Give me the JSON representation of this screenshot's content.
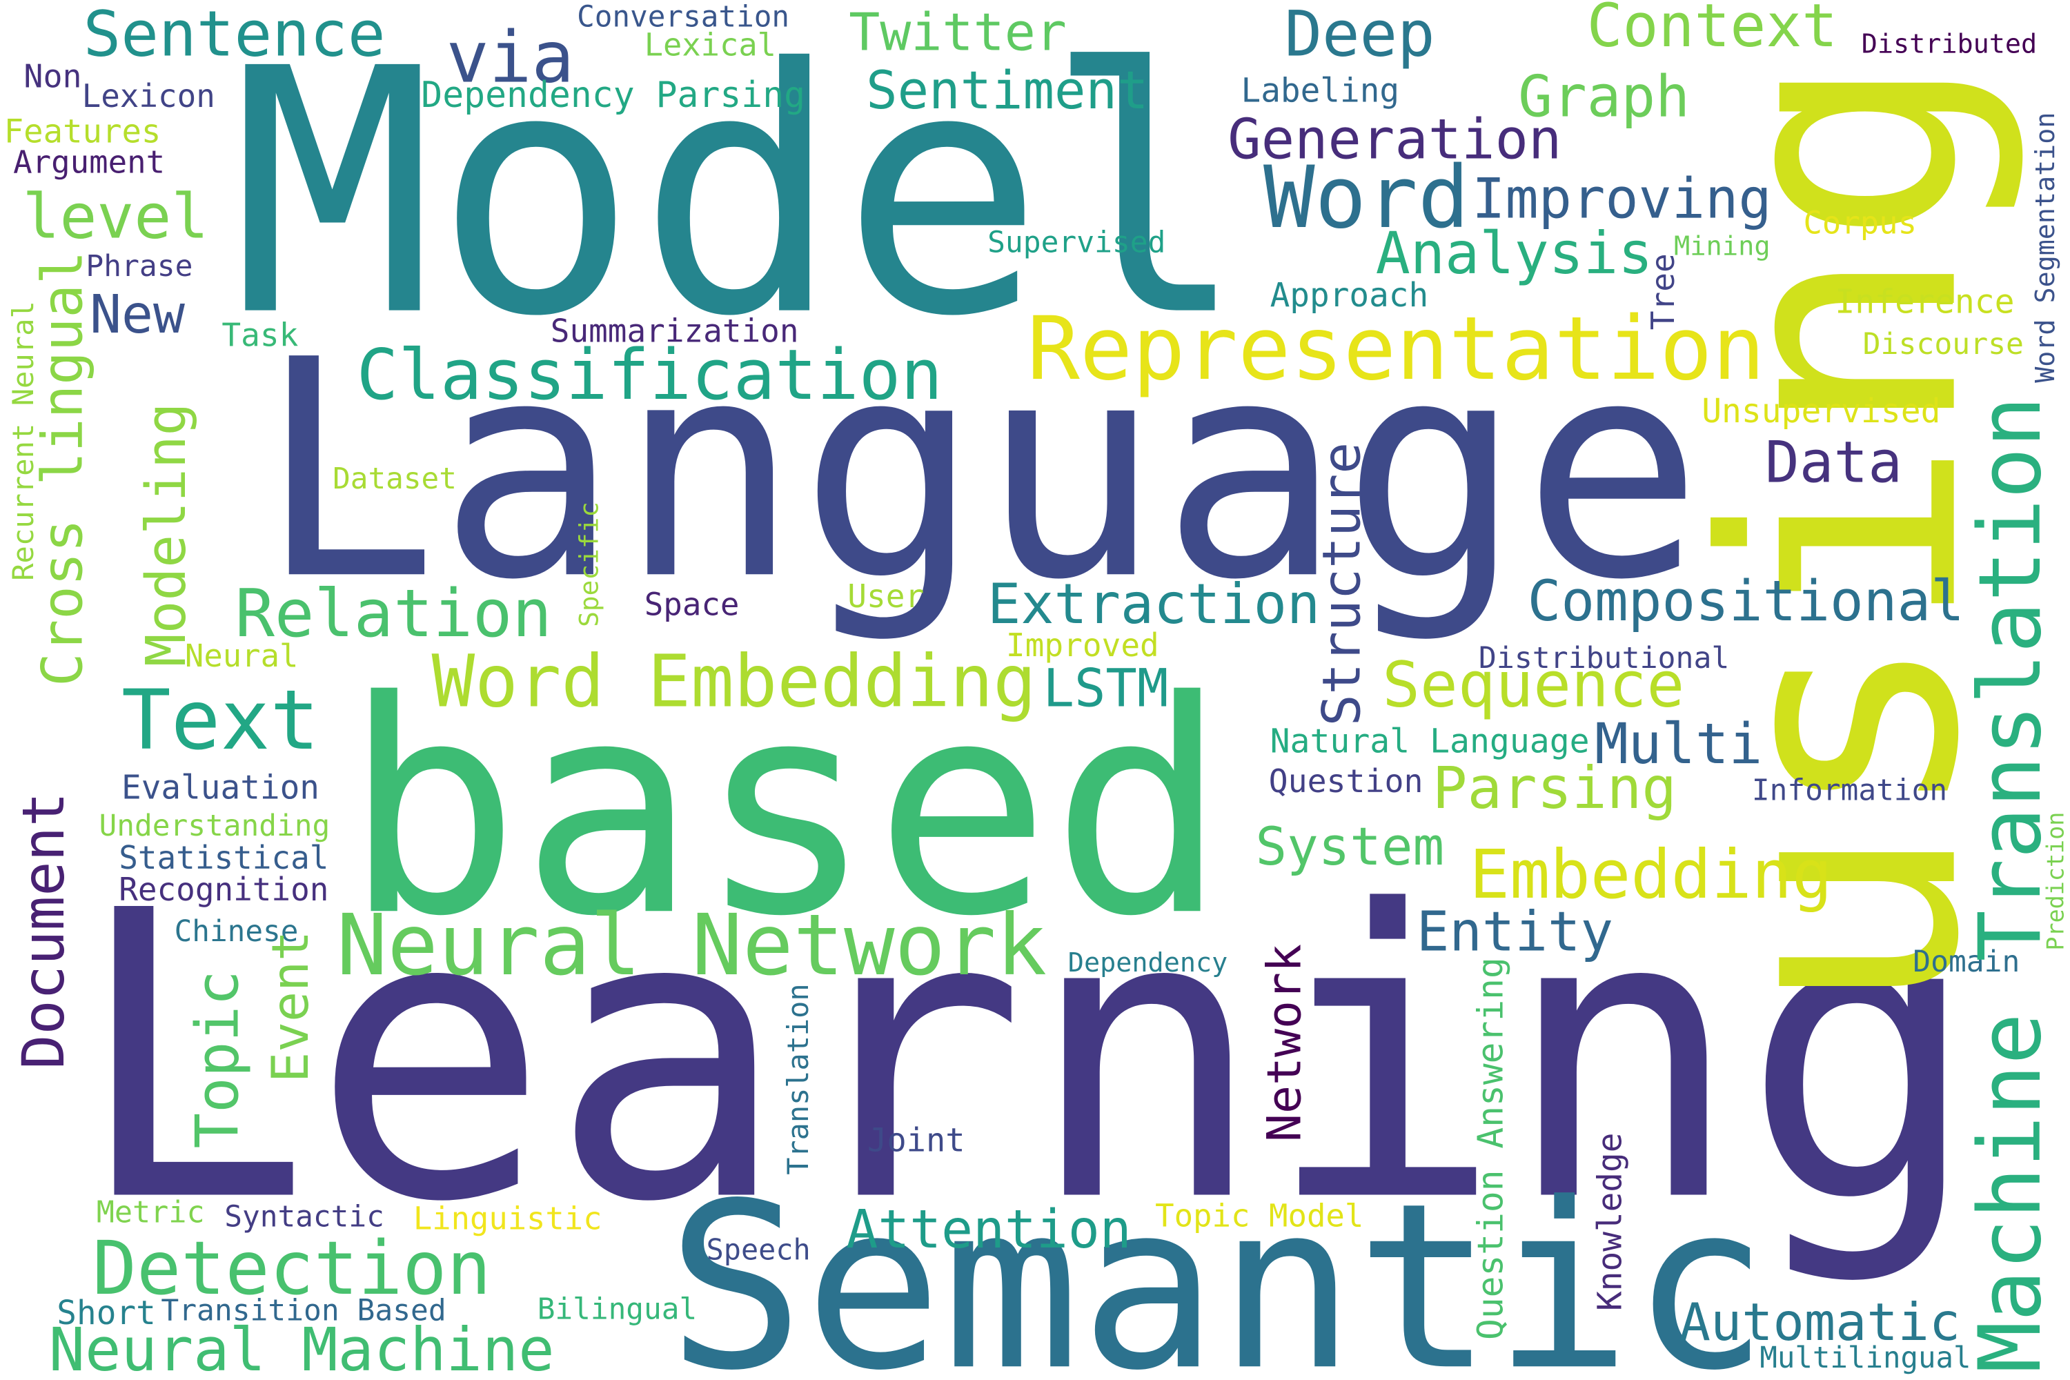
{
  "words": [
    {
      "text": "Model",
      "color": "#25858e"
    },
    {
      "text": "Language",
      "color": "#3e4a89"
    },
    {
      "text": "Learning",
      "color": "#443983"
    },
    {
      "text": "based",
      "color": "#3dbc74"
    },
    {
      "text": "Semantic",
      "color": "#2c728e"
    },
    {
      "text": "using",
      "color": "#d0e11c"
    },
    {
      "text": "Sentence",
      "color": "#21918c"
    },
    {
      "text": "via",
      "color": "#3b528b"
    },
    {
      "text": "Conversation",
      "color": "#39568c"
    },
    {
      "text": "Lexical",
      "color": "#7ad151"
    },
    {
      "text": "Twitter",
      "color": "#5ec962"
    },
    {
      "text": "Deep",
      "color": "#2a788e"
    },
    {
      "text": "Context",
      "color": "#84d44b"
    },
    {
      "text": "Distributed",
      "color": "#440154"
    },
    {
      "text": "Non",
      "color": "#46327e"
    },
    {
      "text": "Lexicon",
      "color": "#414487"
    },
    {
      "text": "Dependency Parsing",
      "color": "#22a884"
    },
    {
      "text": "Sentiment",
      "color": "#1f9e89"
    },
    {
      "text": "Labeling",
      "color": "#31688e"
    },
    {
      "text": "Graph",
      "color": "#6ccd5a"
    },
    {
      "text": "Features",
      "color": "#b5de2b"
    },
    {
      "text": "Argument",
      "color": "#481f70"
    },
    {
      "text": "Generation",
      "color": "#472d7b"
    },
    {
      "text": "Word",
      "color": "#2d708e"
    },
    {
      "text": "Improving",
      "color": "#355f8d"
    },
    {
      "text": "level",
      "color": "#7ad151"
    },
    {
      "text": "Phrase",
      "color": "#433e85"
    },
    {
      "text": "Supervised",
      "color": "#1fa188"
    },
    {
      "text": "Analysis",
      "color": "#29af7f"
    },
    {
      "text": "Mining",
      "color": "#6ece58"
    },
    {
      "text": "Corpus",
      "color": "#e5e419"
    },
    {
      "text": "New",
      "color": "#3b528b"
    },
    {
      "text": "Task",
      "color": "#38b977"
    },
    {
      "text": "Summarization",
      "color": "#482878"
    },
    {
      "text": "Approach",
      "color": "#228c8d"
    },
    {
      "text": "Inference",
      "color": "#c8e020"
    },
    {
      "text": "Discourse",
      "color": "#bddf26"
    },
    {
      "text": "Representation",
      "color": "#e7e419"
    },
    {
      "text": "Classification",
      "color": "#20a486"
    },
    {
      "text": "Unsupervised",
      "color": "#dde318"
    },
    {
      "text": "Data",
      "color": "#46327e"
    },
    {
      "text": "Dataset",
      "color": "#a8db34"
    },
    {
      "text": "Space",
      "color": "#482475"
    },
    {
      "text": "User",
      "color": "#a5db36"
    },
    {
      "text": "Relation",
      "color": "#4ac16d"
    },
    {
      "text": "Extraction",
      "color": "#23898e"
    },
    {
      "text": "Compositional",
      "color": "#2c718e"
    },
    {
      "text": "Neural",
      "color": "#b5de2b"
    },
    {
      "text": "Improved",
      "color": "#c2df23"
    },
    {
      "text": "Distributional",
      "color": "#414487"
    },
    {
      "text": "Word Embedding",
      "color": "#addc30"
    },
    {
      "text": "LSTM",
      "color": "#1f9a8a"
    },
    {
      "text": "Sequence",
      "color": "#b8de29"
    },
    {
      "text": "Text",
      "color": "#22a785"
    },
    {
      "text": "Natural Language",
      "color": "#25ac82"
    },
    {
      "text": "Multi",
      "color": "#33628d"
    },
    {
      "text": "Evaluation",
      "color": "#3b528b"
    },
    {
      "text": "Question",
      "color": "#424086"
    },
    {
      "text": "Parsing",
      "color": "#a0da39"
    },
    {
      "text": "Information",
      "color": "#3f4889"
    },
    {
      "text": "Understanding",
      "color": "#86d549"
    },
    {
      "text": "System",
      "color": "#52c569"
    },
    {
      "text": "Statistical",
      "color": "#365d8d"
    },
    {
      "text": "Recognition",
      "color": "#46307e"
    },
    {
      "text": "Embedding",
      "color": "#d8e219"
    },
    {
      "text": "Chinese",
      "color": "#2b758e"
    },
    {
      "text": "Neural Network",
      "color": "#65cb5e"
    },
    {
      "text": "Entity",
      "color": "#31688e"
    },
    {
      "text": "Dependency",
      "color": "#277f8e"
    },
    {
      "text": "Domain",
      "color": "#2e6f8e"
    },
    {
      "text": "Joint",
      "color": "#3e4a89"
    },
    {
      "text": "Metric",
      "color": "#7fd34e"
    },
    {
      "text": "Syntactic",
      "color": "#433d84"
    },
    {
      "text": "Linguistic",
      "color": "#f1e51d"
    },
    {
      "text": "Topic Model",
      "color": "#e2e418"
    },
    {
      "text": "Attention",
      "color": "#1e9c89"
    },
    {
      "text": "Speech",
      "color": "#3e4c8a"
    },
    {
      "text": "Detection",
      "color": "#48c16e"
    },
    {
      "text": "Short",
      "color": "#26828e"
    },
    {
      "text": "Transition Based",
      "color": "#31688e"
    },
    {
      "text": "Bilingual",
      "color": "#35b779"
    },
    {
      "text": "Automatic",
      "color": "#29798e"
    },
    {
      "text": "Neural Machine",
      "color": "#40bd72"
    },
    {
      "text": "Multilingual",
      "color": "#277f8e"
    },
    {
      "text": "Cross lingual",
      "color": "#8bd646"
    },
    {
      "text": "Recurrent Neural",
      "color": "#95d840"
    },
    {
      "text": "Modeling",
      "color": "#8fd744"
    },
    {
      "text": "Specific",
      "color": "#9bd93c"
    },
    {
      "text": "Structure",
      "color": "#3e4a89"
    },
    {
      "text": "Tree",
      "color": "#414487"
    },
    {
      "text": "Word Segmentation",
      "color": "#3b528b"
    },
    {
      "text": "Machine Translation",
      "color": "#2ab07f"
    },
    {
      "text": "Document",
      "color": "#482173"
    },
    {
      "text": "Topic",
      "color": "#52c569"
    },
    {
      "text": "Event",
      "color": "#7ad151"
    },
    {
      "text": "Network",
      "color": "#440154"
    },
    {
      "text": "Translation",
      "color": "#2c728e"
    },
    {
      "text": "Question Answering",
      "color": "#4ac16d"
    },
    {
      "text": "Knowledge",
      "color": "#472c7a"
    },
    {
      "text": "Prediction",
      "color": "#7ad151"
    }
  ]
}
